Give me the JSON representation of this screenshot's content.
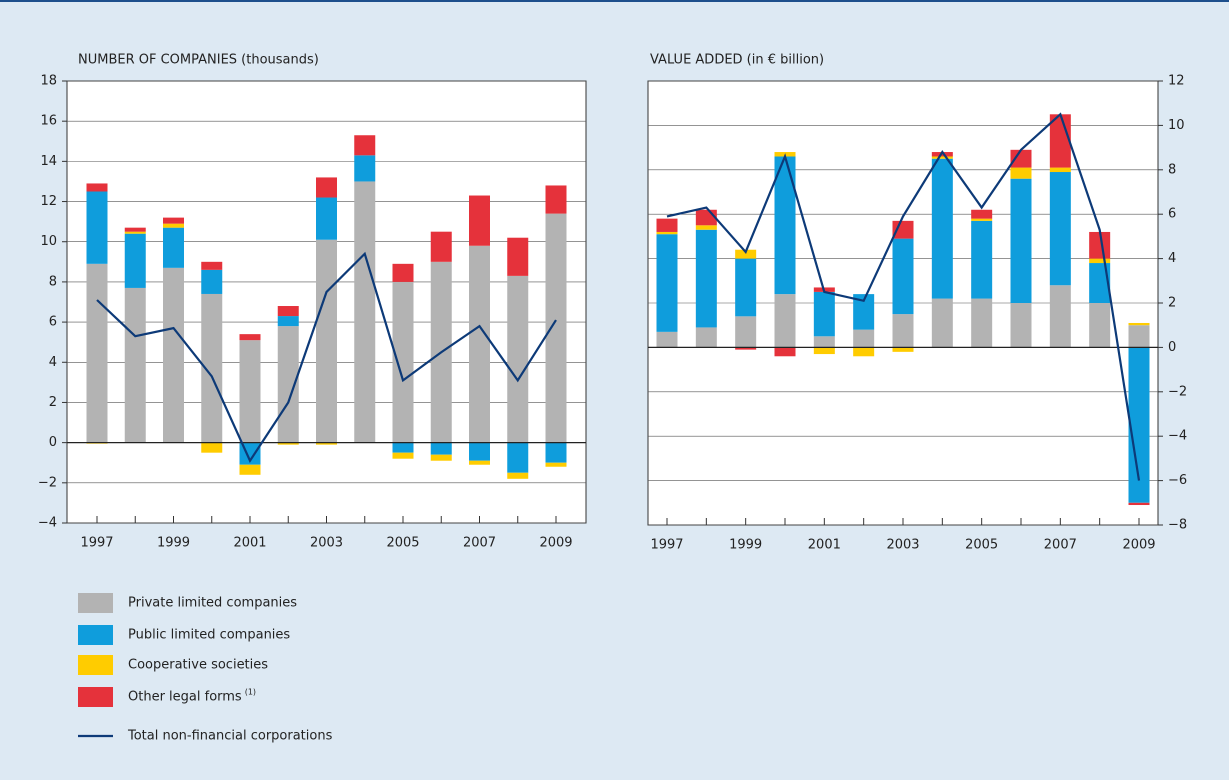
{
  "chart_data": [
    {
      "type": "bar",
      "stacked": true,
      "title": "NUMBER OF COMPANIES (thousands)",
      "y_axis_side": "left",
      "categories": [
        "1997",
        null,
        "1999",
        null,
        "2001",
        null,
        "2003",
        null,
        "2005",
        null,
        "2007",
        null,
        "2009"
      ],
      "ylim": [
        -4,
        18
      ],
      "yticks": [
        {
          "value": -4,
          "label": "−4"
        },
        {
          "value": -2,
          "label": "−2"
        },
        0,
        2,
        4,
        6,
        8,
        10,
        12,
        14,
        16,
        18
      ],
      "grid": true,
      "series": [
        {
          "name": "Private limited companies",
          "color": "#b3b3b3",
          "values": [
            8.9,
            7.7,
            8.7,
            7.4,
            5.1,
            5.8,
            10.1,
            13.0,
            8.0,
            9.0,
            9.8,
            8.3,
            11.4
          ]
        },
        {
          "name": "Public limited companies",
          "color": "#0f9ddc",
          "values": [
            3.6,
            2.7,
            2.0,
            1.2,
            -1.1,
            0.5,
            2.1,
            1.3,
            -0.5,
            -0.6,
            -0.9,
            -1.5,
            -1.0
          ]
        },
        {
          "name": "Cooperative societies",
          "color": "#ffcc00",
          "values": [
            -0.05,
            0.1,
            0.2,
            -0.5,
            -0.5,
            -0.1,
            -0.1,
            0,
            -0.3,
            -0.3,
            -0.2,
            -0.3,
            -0.2
          ]
        },
        {
          "name": "Other legal forms",
          "note": "(1)",
          "color": "#e5323b",
          "values": [
            0.4,
            0.2,
            0.3,
            0.4,
            0.3,
            0.5,
            1.0,
            1.0,
            0.9,
            1.5,
            2.5,
            1.9,
            1.4
          ]
        },
        {
          "name": "Total non-financial corporations",
          "type": "line",
          "color": "#0d3a78",
          "values": [
            7.1,
            5.3,
            5.7,
            3.3,
            -0.9,
            2.0,
            7.5,
            9.4,
            3.1,
            4.5,
            5.8,
            3.1,
            6.1
          ]
        }
      ]
    },
    {
      "type": "bar",
      "stacked": true,
      "title": "VALUE ADDED (in € billion)",
      "y_axis_side": "right",
      "categories": [
        "1997",
        null,
        "1999",
        null,
        "2001",
        null,
        "2003",
        null,
        "2005",
        null,
        "2007",
        null,
        "2009"
      ],
      "ylim": [
        -8,
        12
      ],
      "yticks": [
        {
          "value": -8,
          "label": "−8"
        },
        {
          "value": -6,
          "label": "−6"
        },
        {
          "value": -4,
          "label": "−4"
        },
        {
          "value": -2,
          "label": "−2"
        },
        0,
        2,
        4,
        6,
        8,
        10,
        12
      ],
      "grid": true,
      "series": [
        {
          "color": "#b3b3b3",
          "values": [
            0.7,
            0.9,
            1.4,
            2.4,
            0.5,
            0.8,
            1.5,
            2.2,
            2.2,
            2.0,
            2.8,
            2.0,
            1.0
          ]
        },
        {
          "color": "#0f9ddc",
          "values": [
            4.4,
            4.4,
            2.6,
            6.2,
            2.0,
            1.6,
            3.4,
            6.3,
            3.5,
            5.6,
            5.1,
            1.8,
            -7.0
          ]
        },
        {
          "color": "#ffcc00",
          "values": [
            0.1,
            0.2,
            0.4,
            0.2,
            -0.3,
            -0.4,
            -0.2,
            0.1,
            0.1,
            0.5,
            0.2,
            0.2,
            0.1
          ]
        },
        {
          "color": "#e5323b",
          "values": [
            0.6,
            0.7,
            -0.1,
            -0.4,
            0.2,
            0,
            0.8,
            0.2,
            0.4,
            0.8,
            2.4,
            1.2,
            -0.1
          ]
        },
        {
          "type": "line",
          "color": "#0d3a78",
          "values": [
            5.9,
            6.3,
            4.3,
            8.6,
            2.5,
            2.1,
            5.9,
            8.8,
            6.3,
            8.9,
            10.5,
            5.3,
            -6.0
          ]
        }
      ]
    }
  ]
}
